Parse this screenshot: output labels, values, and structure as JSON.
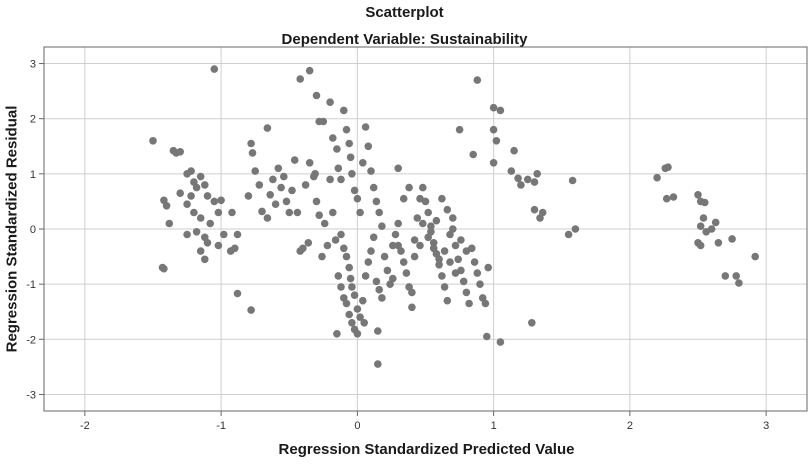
{
  "chart_data": {
    "type": "scatter",
    "title": "Scatterplot",
    "subtitle": "Dependent Variable: Sustainability",
    "xlabel": "Regression Standardized Predicted Value",
    "ylabel": "Regression Standardized Residual",
    "xlim": [
      -2.3,
      3.3
    ],
    "ylim": [
      -3.3,
      3.3
    ],
    "x_ticks": [
      -2,
      -1,
      0,
      1,
      2,
      3
    ],
    "y_ticks": [
      -3,
      -2,
      -1,
      0,
      1,
      2,
      3
    ],
    "grid": true,
    "point_color": "#777777",
    "points": [
      [
        -1.5,
        1.6
      ],
      [
        -1.35,
        1.42
      ],
      [
        -1.33,
        1.38
      ],
      [
        -1.3,
        1.4
      ],
      [
        -1.42,
        0.52
      ],
      [
        -1.4,
        0.42
      ],
      [
        -1.38,
        0.1
      ],
      [
        -1.43,
        -0.7
      ],
      [
        -1.42,
        -0.72
      ],
      [
        -1.25,
        1.0
      ],
      [
        -1.22,
        1.05
      ],
      [
        -1.2,
        0.85
      ],
      [
        -1.18,
        0.75
      ],
      [
        -1.15,
        0.95
      ],
      [
        -1.12,
        0.8
      ],
      [
        -1.1,
        0.6
      ],
      [
        -1.05,
        0.5
      ],
      [
        -1.25,
        0.45
      ],
      [
        -1.2,
        0.3
      ],
      [
        -1.15,
        0.2
      ],
      [
        -1.08,
        0.1
      ],
      [
        -1.02,
        0.3
      ],
      [
        -1.0,
        0.52
      ],
      [
        -1.22,
        0.6
      ],
      [
        -1.3,
        0.65
      ],
      [
        -1.18,
        -0.05
      ],
      [
        -1.12,
        -0.15
      ],
      [
        -1.1,
        -0.25
      ],
      [
        -1.15,
        -0.4
      ],
      [
        -1.12,
        -0.55
      ],
      [
        -1.02,
        -0.3
      ],
      [
        -0.98,
        -0.1
      ],
      [
        -1.25,
        -0.1
      ],
      [
        -0.92,
        0.3
      ],
      [
        -0.9,
        -0.35
      ],
      [
        -0.88,
        -0.1
      ],
      [
        -0.93,
        -0.4
      ],
      [
        -1.05,
        2.9
      ],
      [
        -0.88,
        -1.17
      ],
      [
        -0.78,
        -1.47
      ],
      [
        -0.8,
        0.6
      ],
      [
        -0.78,
        1.55
      ],
      [
        -0.77,
        1.38
      ],
      [
        -0.75,
        1.05
      ],
      [
        -0.72,
        0.8
      ],
      [
        -0.7,
        0.32
      ],
      [
        -0.66,
        0.2
      ],
      [
        -0.64,
        0.62
      ],
      [
        -0.62,
        0.9
      ],
      [
        -0.6,
        0.45
      ],
      [
        -0.58,
        1.1
      ],
      [
        -0.56,
        0.75
      ],
      [
        -0.54,
        0.95
      ],
      [
        -0.52,
        0.5
      ],
      [
        -0.5,
        0.3
      ],
      [
        -0.48,
        0.7
      ],
      [
        -0.46,
        1.25
      ],
      [
        -0.44,
        0.3
      ],
      [
        -0.42,
        -0.4
      ],
      [
        -0.4,
        -0.35
      ],
      [
        -0.38,
        0.8
      ],
      [
        -0.36,
        -0.25
      ],
      [
        -0.35,
        1.2
      ],
      [
        -0.32,
        0.95
      ],
      [
        -0.31,
        1.0
      ],
      [
        -0.3,
        0.5
      ],
      [
        -0.28,
        0.25
      ],
      [
        -0.26,
        -0.5
      ],
      [
        -0.24,
        0.1
      ],
      [
        -0.22,
        -0.3
      ],
      [
        -0.2,
        0.9
      ],
      [
        -0.18,
        0.3
      ],
      [
        -0.66,
        1.83
      ],
      [
        -0.42,
        2.72
      ],
      [
        -0.35,
        2.87
      ],
      [
        -0.3,
        2.42
      ],
      [
        -0.28,
        1.95
      ],
      [
        -0.25,
        1.95
      ],
      [
        -0.2,
        2.3
      ],
      [
        -0.18,
        1.65
      ],
      [
        -0.15,
        1.45
      ],
      [
        -0.14,
        1.1
      ],
      [
        -0.12,
        0.9
      ],
      [
        -0.1,
        2.15
      ],
      [
        -0.08,
        1.8
      ],
      [
        -0.06,
        1.55
      ],
      [
        -0.05,
        1.3
      ],
      [
        -0.04,
        1.0
      ],
      [
        -0.02,
        0.7
      ],
      [
        0.0,
        0.55
      ],
      [
        0.02,
        0.3
      ],
      [
        0.04,
        1.2
      ],
      [
        0.06,
        1.85
      ],
      [
        0.08,
        1.5
      ],
      [
        0.1,
        1.05
      ],
      [
        0.12,
        0.75
      ],
      [
        0.14,
        0.5
      ],
      [
        0.16,
        0.3
      ],
      [
        0.18,
        0.05
      ],
      [
        -0.16,
        -0.2
      ],
      [
        -0.12,
        -0.1
      ],
      [
        -0.1,
        -0.35
      ],
      [
        -0.08,
        -0.5
      ],
      [
        -0.06,
        -0.7
      ],
      [
        -0.05,
        -0.9
      ],
      [
        -0.04,
        -1.05
      ],
      [
        -0.02,
        -1.2
      ],
      [
        0.0,
        -1.45
      ],
      [
        0.02,
        -1.6
      ],
      [
        0.04,
        -1.3
      ],
      [
        0.06,
        -0.85
      ],
      [
        0.08,
        -0.6
      ],
      [
        0.1,
        -0.4
      ],
      [
        0.12,
        -0.15
      ],
      [
        0.14,
        -0.95
      ],
      [
        0.16,
        -1.1
      ],
      [
        0.18,
        -1.25
      ],
      [
        -0.14,
        -0.85
      ],
      [
        -0.12,
        -1.05
      ],
      [
        -0.1,
        -1.25
      ],
      [
        -0.08,
        -1.35
      ],
      [
        -0.06,
        -1.55
      ],
      [
        -0.04,
        -1.7
      ],
      [
        -0.02,
        -1.82
      ],
      [
        0.0,
        -1.9
      ],
      [
        0.05,
        -1.7
      ],
      [
        -0.15,
        -1.9
      ],
      [
        0.15,
        -1.85
      ],
      [
        0.15,
        -2.45
      ],
      [
        0.2,
        -0.5
      ],
      [
        0.22,
        -0.75
      ],
      [
        0.24,
        -1.0
      ],
      [
        0.26,
        -0.3
      ],
      [
        0.28,
        -0.1
      ],
      [
        0.3,
        0.1
      ],
      [
        0.32,
        -0.4
      ],
      [
        0.34,
        -0.6
      ],
      [
        0.36,
        -0.8
      ],
      [
        0.38,
        -1.05
      ],
      [
        0.4,
        -1.15
      ],
      [
        0.42,
        -0.2
      ],
      [
        0.44,
        0.2
      ],
      [
        0.46,
        0.55
      ],
      [
        0.48,
        0.75
      ],
      [
        0.5,
        0.5
      ],
      [
        0.52,
        0.3
      ],
      [
        0.54,
        0.05
      ],
      [
        0.56,
        -0.25
      ],
      [
        0.58,
        -0.45
      ],
      [
        0.6,
        -0.65
      ],
      [
        0.62,
        -0.85
      ],
      [
        0.64,
        -1.05
      ],
      [
        0.66,
        -1.3
      ],
      [
        0.68,
        -0.1
      ],
      [
        0.7,
        0.0
      ],
      [
        0.72,
        -0.3
      ],
      [
        0.74,
        -0.55
      ],
      [
        0.76,
        -0.75
      ],
      [
        0.78,
        -0.95
      ],
      [
        0.8,
        -1.15
      ],
      [
        0.82,
        -1.35
      ],
      [
        0.84,
        -0.35
      ],
      [
        0.86,
        -0.6
      ],
      [
        0.88,
        -0.8
      ],
      [
        0.9,
        -1.0
      ],
      [
        0.92,
        -1.25
      ],
      [
        0.94,
        -1.35
      ],
      [
        0.96,
        -0.7
      ],
      [
        0.4,
        -1.42
      ],
      [
        0.48,
        0.1
      ],
      [
        0.52,
        -0.15
      ],
      [
        0.56,
        -0.35
      ],
      [
        0.6,
        -0.55
      ],
      [
        0.64,
        -0.4
      ],
      [
        0.68,
        -0.6
      ],
      [
        0.72,
        -0.8
      ],
      [
        0.76,
        -0.2
      ],
      [
        0.8,
        -0.4
      ],
      [
        0.34,
        0.55
      ],
      [
        0.38,
        0.75
      ],
      [
        0.3,
        1.1
      ],
      [
        0.62,
        0.55
      ],
      [
        0.66,
        0.35
      ],
      [
        0.7,
        0.2
      ],
      [
        0.58,
        0.15
      ],
      [
        0.54,
        -0.05
      ],
      [
        0.46,
        -0.3
      ],
      [
        0.42,
        -0.5
      ],
      [
        0.26,
        -0.9
      ],
      [
        0.3,
        -0.3
      ],
      [
        0.75,
        1.8
      ],
      [
        0.88,
        2.7
      ],
      [
        0.85,
        1.35
      ],
      [
        0.95,
        -1.95
      ],
      [
        1.05,
        -2.05
      ],
      [
        1.0,
        2.2
      ],
      [
        1.05,
        2.15
      ],
      [
        1.0,
        1.8
      ],
      [
        1.02,
        1.6
      ],
      [
        1.0,
        1.2
      ],
      [
        1.15,
        1.42
      ],
      [
        1.13,
        1.05
      ],
      [
        1.18,
        0.92
      ],
      [
        1.2,
        0.8
      ],
      [
        1.25,
        0.9
      ],
      [
        1.3,
        0.85
      ],
      [
        1.32,
        1.0
      ],
      [
        1.3,
        0.35
      ],
      [
        1.34,
        0.2
      ],
      [
        1.36,
        0.3
      ],
      [
        1.28,
        -1.7
      ],
      [
        1.55,
        -0.1
      ],
      [
        1.58,
        0.88
      ],
      [
        1.6,
        0.0
      ],
      [
        2.2,
        0.93
      ],
      [
        2.26,
        1.1
      ],
      [
        2.28,
        1.12
      ],
      [
        2.27,
        0.55
      ],
      [
        2.32,
        0.58
      ],
      [
        2.5,
        0.62
      ],
      [
        2.52,
        0.5
      ],
      [
        2.55,
        0.48
      ],
      [
        2.54,
        0.2
      ],
      [
        2.52,
        0.05
      ],
      [
        2.5,
        -0.25
      ],
      [
        2.52,
        -0.3
      ],
      [
        2.56,
        -0.05
      ],
      [
        2.6,
        0.0
      ],
      [
        2.63,
        0.12
      ],
      [
        2.65,
        -0.25
      ],
      [
        2.7,
        -0.85
      ],
      [
        2.75,
        -0.18
      ],
      [
        2.78,
        -0.85
      ],
      [
        2.8,
        -0.98
      ],
      [
        2.92,
        -0.5
      ]
    ]
  }
}
